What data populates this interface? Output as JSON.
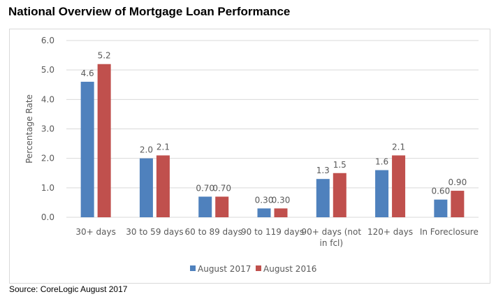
{
  "title": "National Overview of Mortgage Loan Performance",
  "source": "Source: CoreLogic August 2017",
  "chart_data": {
    "type": "bar",
    "title": "National Overview of Mortgage Loan Performance",
    "xlabel": "",
    "ylabel": "Percentage Rate",
    "ylim": [
      0,
      6
    ],
    "yticks": [
      "0.0",
      "1.0",
      "2.0",
      "3.0",
      "4.0",
      "5.0",
      "6.0"
    ],
    "grid": true,
    "legend_position": "bottom",
    "categories": [
      "30+ days",
      "30 to 59 days",
      "60 to 89 days",
      "90 to 119 days",
      [
        "90+ days (not",
        "in fcl)"
      ],
      "120+ days",
      "In Foreclosure"
    ],
    "series": [
      {
        "name": "August 2017",
        "color": "#4f81bd",
        "values": [
          4.6,
          2.0,
          0.7,
          0.3,
          1.3,
          1.6,
          0.6
        ],
        "labels": [
          "4.6",
          "2.0",
          "0.70",
          "0.30",
          "1.3",
          "1.6",
          "0.60"
        ]
      },
      {
        "name": "August 2016",
        "color": "#c0504d",
        "values": [
          5.2,
          2.1,
          0.7,
          0.3,
          1.5,
          2.1,
          0.9
        ],
        "labels": [
          "5.2",
          "2.1",
          "0.70",
          "0.30",
          "1.5",
          "2.1",
          "0.90"
        ]
      }
    ]
  }
}
